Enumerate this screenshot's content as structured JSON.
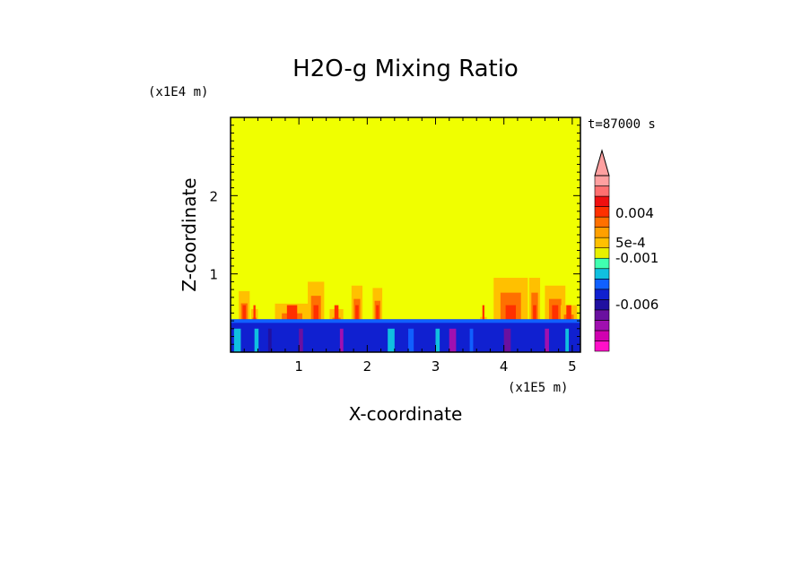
{
  "chart_data": {
    "type": "heatmap",
    "title": "H2O-g Mixing Ratio",
    "xlabel": "X-coordinate",
    "ylabel": "Z-coordinate",
    "x_scale_label": "(x1E5 m)",
    "y_scale_label": "(x1E4 m)",
    "time_label": "t=87000 s",
    "xlim": [
      0,
      5.12
    ],
    "ylim": [
      0,
      3.0
    ],
    "x_ticks": [
      "1",
      "2",
      "3",
      "4",
      "5"
    ],
    "y_ticks": [
      "1",
      "2"
    ],
    "colorbar_labels": [
      "0.004",
      "5e-4",
      "-0.001",
      "-0.006"
    ],
    "background_level_color": "#f0ff00",
    "colorbar_colors": [
      "#ff10c8",
      "#d000b0",
      "#a010b0",
      "#6a10a0",
      "#2010a0",
      "#1020d0",
      "#1060ff",
      "#10c0e0",
      "#40ffb0",
      "#e8f000",
      "#ffc000",
      "#ffa000",
      "#ff7000",
      "#ff3000",
      "#f01010",
      "#ff7070",
      "#ffa0a0"
    ]
  }
}
